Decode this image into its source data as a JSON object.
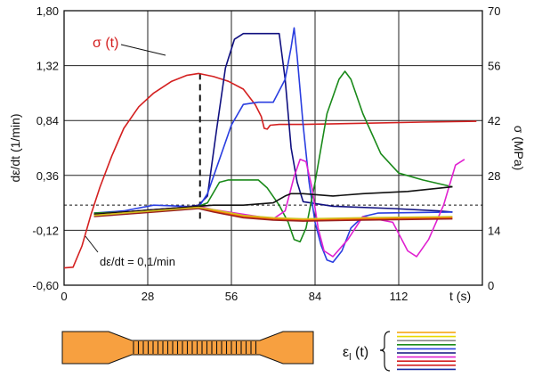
{
  "chart_data": {
    "type": "line",
    "xlabel": "t (s)",
    "ylabel_left": "dε/dt (1/min)",
    "ylabel_right": "σ (MPa)",
    "x_ticks": [
      "0",
      "28",
      "56",
      "84",
      "112"
    ],
    "y_left_ticks": [
      "1,80",
      "1,32",
      "0,84",
      "0,36",
      "-0,12",
      "-0,60"
    ],
    "y_right_ticks": [
      "70",
      "56",
      "42",
      "28",
      "14",
      "0"
    ],
    "xlim": [
      0,
      140
    ],
    "ylim_left": [
      -0.6,
      1.8
    ],
    "ylim_right": [
      0,
      70
    ],
    "grid": true,
    "threshold_line": {
      "value": 0.1,
      "label": "dε/dt = 0,1/min"
    },
    "marker_line_x": 45.5,
    "stress_label": "σ (t)",
    "strain_legend_label": "ε l (t)",
    "series": [
      {
        "axis": "right",
        "color": "#d42020",
        "points": [
          [
            0,
            4.4
          ],
          [
            3,
            4.6
          ],
          [
            6,
            10
          ],
          [
            9,
            18
          ],
          [
            12,
            25
          ],
          [
            16,
            33
          ],
          [
            20,
            40
          ],
          [
            25,
            45.5
          ],
          [
            30,
            49
          ],
          [
            36,
            52
          ],
          [
            41,
            53.5
          ],
          [
            45,
            54
          ],
          [
            50,
            53.2
          ],
          [
            55,
            52
          ],
          [
            60,
            50
          ],
          [
            64,
            46
          ],
          [
            66,
            43
          ],
          [
            67,
            40
          ],
          [
            68,
            39.8
          ],
          [
            69,
            40.8
          ],
          [
            72,
            41
          ],
          [
            80,
            41
          ],
          [
            100,
            41.3
          ],
          [
            120,
            41.6
          ],
          [
            138,
            41.8
          ]
        ]
      },
      {
        "axis": "left",
        "color": "#101080",
        "points": [
          [
            10,
            0.02
          ],
          [
            20,
            0.04
          ],
          [
            30,
            0.06
          ],
          [
            40,
            0.08
          ],
          [
            45,
            0.1
          ],
          [
            48,
            0.18
          ],
          [
            51,
            0.75
          ],
          [
            54,
            1.3
          ],
          [
            57,
            1.55
          ],
          [
            60,
            1.6
          ],
          [
            65,
            1.6
          ],
          [
            70,
            1.6
          ],
          [
            72,
            1.6
          ],
          [
            74,
            1.2
          ],
          [
            76,
            0.6
          ],
          [
            78,
            0.3
          ],
          [
            80,
            0.13
          ],
          [
            90,
            0.09
          ],
          [
            110,
            0.07
          ],
          [
            125,
            0.05
          ],
          [
            130,
            0.04
          ]
        ]
      },
      {
        "axis": "left",
        "color": "#2a3ee0",
        "points": [
          [
            10,
            0.03
          ],
          [
            20,
            0.05
          ],
          [
            30,
            0.1
          ],
          [
            40,
            0.09
          ],
          [
            45,
            0.08
          ],
          [
            48,
            0.2
          ],
          [
            52,
            0.5
          ],
          [
            56,
            0.8
          ],
          [
            60,
            0.98
          ],
          [
            65,
            1.0
          ],
          [
            70,
            1.0
          ],
          [
            74,
            1.2
          ],
          [
            76,
            1.48
          ],
          [
            77,
            1.65
          ],
          [
            78,
            1.4
          ],
          [
            80,
            0.8
          ],
          [
            82,
            0.3
          ],
          [
            84,
            -0.05
          ],
          [
            86,
            -0.25
          ],
          [
            88,
            -0.38
          ],
          [
            90,
            -0.4
          ],
          [
            93,
            -0.3
          ],
          [
            96,
            -0.1
          ],
          [
            100,
            0.0
          ],
          [
            105,
            0.03
          ],
          [
            130,
            0.04
          ]
        ]
      },
      {
        "axis": "left",
        "color": "#1a8a1a",
        "points": [
          [
            10,
            0.03
          ],
          [
            20,
            0.04
          ],
          [
            30,
            0.06
          ],
          [
            40,
            0.07
          ],
          [
            45,
            0.09
          ],
          [
            48,
            0.12
          ],
          [
            52,
            0.3
          ],
          [
            55,
            0.32
          ],
          [
            65,
            0.32
          ],
          [
            68,
            0.25
          ],
          [
            72,
            0.1
          ],
          [
            75,
            -0.05
          ],
          [
            77,
            -0.2
          ],
          [
            79,
            -0.22
          ],
          [
            81,
            -0.1
          ],
          [
            84,
            0.3
          ],
          [
            88,
            0.9
          ],
          [
            92,
            1.2
          ],
          [
            94,
            1.27
          ],
          [
            96,
            1.2
          ],
          [
            100,
            0.9
          ],
          [
            106,
            0.55
          ],
          [
            112,
            0.38
          ],
          [
            120,
            0.32
          ],
          [
            130,
            0.26
          ]
        ]
      },
      {
        "axis": "left",
        "color": "#e020d0",
        "points": [
          [
            10,
            0.02
          ],
          [
            20,
            0.04
          ],
          [
            30,
            0.06
          ],
          [
            40,
            0.08
          ],
          [
            45,
            0.09
          ],
          [
            50,
            0.06
          ],
          [
            60,
            0.02
          ],
          [
            70,
            -0.02
          ],
          [
            74,
            0.05
          ],
          [
            77,
            0.35
          ],
          [
            79,
            0.5
          ],
          [
            81,
            0.48
          ],
          [
            83,
            0.25
          ],
          [
            85,
            -0.1
          ],
          [
            87,
            -0.3
          ],
          [
            90,
            -0.35
          ],
          [
            95,
            -0.2
          ],
          [
            100,
            0.0
          ],
          [
            110,
            -0.05
          ],
          [
            115,
            -0.3
          ],
          [
            118,
            -0.35
          ],
          [
            122,
            -0.2
          ],
          [
            127,
            0.1
          ],
          [
            131,
            0.45
          ],
          [
            134,
            0.5
          ]
        ]
      },
      {
        "axis": "left",
        "color": "#111111",
        "points": [
          [
            10,
            0.02
          ],
          [
            20,
            0.04
          ],
          [
            30,
            0.06
          ],
          [
            40,
            0.08
          ],
          [
            45,
            0.09
          ],
          [
            50,
            0.1
          ],
          [
            60,
            0.1
          ],
          [
            70,
            0.12
          ],
          [
            74,
            0.18
          ],
          [
            76,
            0.2
          ],
          [
            80,
            0.2
          ],
          [
            90,
            0.18
          ],
          [
            100,
            0.2
          ],
          [
            115,
            0.22
          ],
          [
            130,
            0.26
          ]
        ]
      },
      {
        "axis": "left",
        "color": "#ff6600",
        "points": [
          [
            10,
            0.01
          ],
          [
            20,
            0.03
          ],
          [
            30,
            0.05
          ],
          [
            40,
            0.07
          ],
          [
            45,
            0.08
          ],
          [
            50,
            0.05
          ],
          [
            60,
            0.0
          ],
          [
            70,
            -0.02
          ],
          [
            80,
            -0.03
          ],
          [
            100,
            -0.02
          ],
          [
            130,
            -0.01
          ]
        ]
      },
      {
        "axis": "left",
        "color": "#9a2020",
        "points": [
          [
            10,
            0.0
          ],
          [
            20,
            0.02
          ],
          [
            30,
            0.04
          ],
          [
            40,
            0.06
          ],
          [
            45,
            0.07
          ],
          [
            50,
            0.04
          ],
          [
            60,
            -0.01
          ],
          [
            70,
            -0.03
          ],
          [
            80,
            -0.04
          ],
          [
            100,
            -0.03
          ],
          [
            130,
            -0.02
          ]
        ]
      },
      {
        "axis": "left",
        "color": "#d0c020",
        "points": [
          [
            10,
            0.01
          ],
          [
            20,
            0.03
          ],
          [
            30,
            0.05
          ],
          [
            40,
            0.07
          ],
          [
            45,
            0.08
          ],
          [
            50,
            0.06
          ],
          [
            60,
            0.01
          ],
          [
            70,
            -0.01
          ],
          [
            80,
            -0.02
          ],
          [
            100,
            -0.01
          ],
          [
            130,
            0.0
          ]
        ]
      }
    ],
    "legend_colors": [
      "#f5a000",
      "#e8d800",
      "#8a8a8a",
      "#1a8a1a",
      "#2a3ee0",
      "#101080",
      "#e020d0",
      "#d42020",
      "#d42020",
      "#1a2aa0"
    ],
    "specimen_fill": "#f7a040"
  }
}
